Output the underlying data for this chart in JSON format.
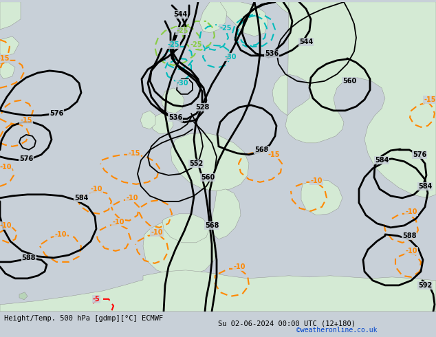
{
  "title_left": "Height/Temp. 500 hPa [gdmp][°C] ECMWF",
  "title_right": "Su 02-06-2024 00:00 UTC (12+180)",
  "watermark": "©weatheronline.co.uk",
  "bg_color": "#c8d0d8",
  "land_color": "#d4ead4",
  "land_color2": "#b8d4b8",
  "sea_color": "#c8d0d8",
  "z500_color": "#000000",
  "temp_neg_color": "#ff8800",
  "temp_pos_color": "#ff0000",
  "cyan_color": "#00bbbb",
  "green_color": "#88cc44",
  "figsize": [
    6.34,
    4.9
  ],
  "dpi": 100
}
